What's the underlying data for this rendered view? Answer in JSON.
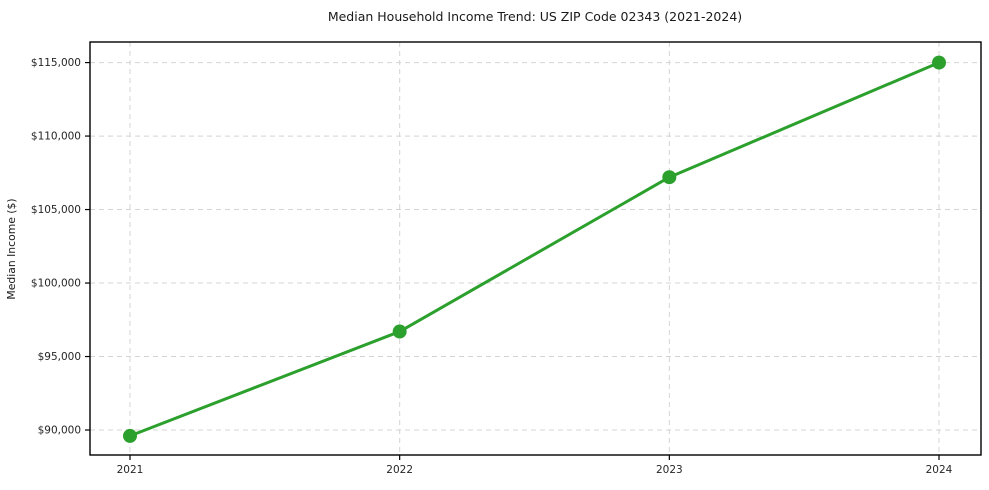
{
  "chart_data": {
    "type": "line",
    "title": "Median Household Income Trend: US ZIP Code 02343 (2021-2024)",
    "xlabel": "",
    "ylabel": "Median Income ($)",
    "categories": [
      "2021",
      "2022",
      "2023",
      "2024"
    ],
    "values": [
      89600,
      96700,
      107200,
      115000
    ],
    "y_ticks": [
      90000,
      95000,
      100000,
      105000,
      110000,
      115000
    ],
    "y_tick_labels": [
      "$90,000",
      "$95,000",
      "$100,000",
      "$105,000",
      "$110,000",
      "$115,000"
    ],
    "ylim": [
      88300,
      116400
    ],
    "grid": true,
    "grid_style": "dashed",
    "legend": "none",
    "colors": {
      "line": "#2ca02c",
      "marker": "#2ca02c",
      "grid": "#d4d4d4",
      "spine": "#000000",
      "text": "#262626"
    }
  }
}
